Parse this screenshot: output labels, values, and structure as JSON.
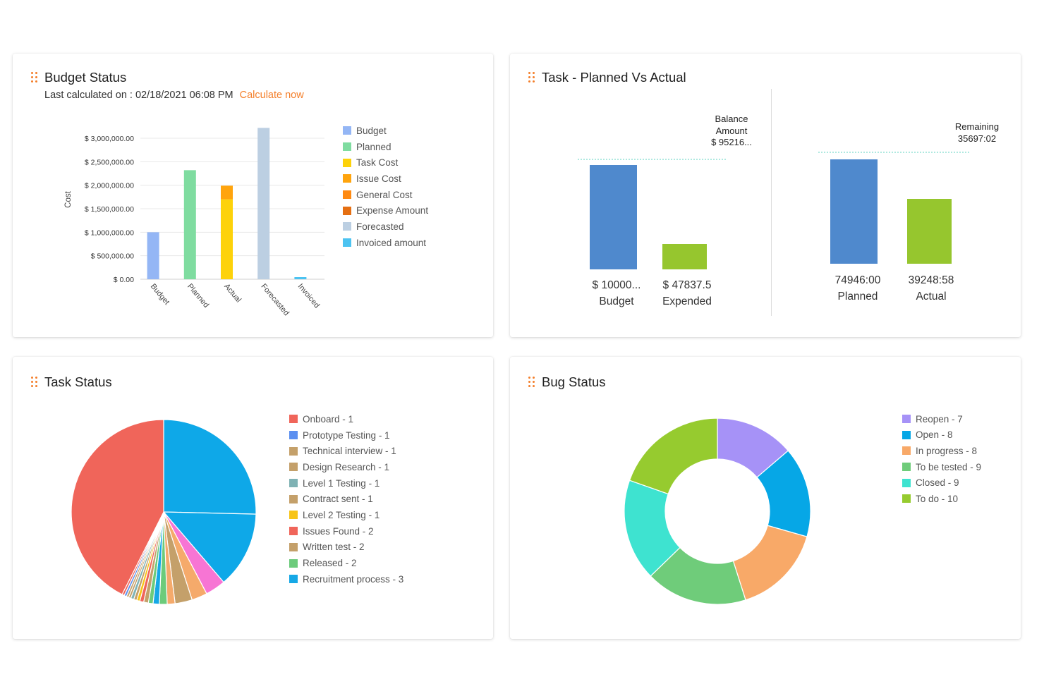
{
  "colors": {
    "accent": "#f47f2a",
    "budget_blue": "#4f89cd",
    "expended_green": "#96c62e"
  },
  "budget_status": {
    "title": "Budget Status",
    "last_calculated_label": "Last calculated on : 02/18/2021 06:08 PM",
    "calculate_now_label": "Calculate now",
    "legend": [
      {
        "label": "Budget",
        "color": "#94b6f5"
      },
      {
        "label": "Planned",
        "color": "#7fdca0"
      },
      {
        "label": "Task Cost",
        "color": "#fdd20a"
      },
      {
        "label": "Issue Cost",
        "color": "#ffa40d"
      },
      {
        "label": "General Cost",
        "color": "#ff8a12"
      },
      {
        "label": "Expense Amount",
        "color": "#e56f12"
      },
      {
        "label": "Forecasted",
        "color": "#bccfe2"
      },
      {
        "label": "Invoiced amount",
        "color": "#4cc3f1"
      }
    ]
  },
  "task_planned_actual": {
    "title": "Task - Planned Vs Actual",
    "left": {
      "annotation": [
        "Balance",
        "Amount",
        "$ 95216..."
      ],
      "bars": [
        {
          "value_label": "$ 10000...",
          "name": "Budget",
          "color": "#4f89cd",
          "level": 1.0
        },
        {
          "value_label": "$ 47837.5",
          "name": "Expended",
          "color": "#96c62e",
          "level": 0.24
        }
      ]
    },
    "right": {
      "annotation": [
        "Remaining",
        "35697:02"
      ],
      "bars": [
        {
          "value_label": "74946:00",
          "name": "Planned",
          "color": "#4f89cd",
          "level": 1.0
        },
        {
          "value_label": "39248:58",
          "name": "Actual",
          "color": "#96c62e",
          "level": 0.62
        }
      ]
    }
  },
  "task_status": {
    "title": "Task Status",
    "legend": [
      {
        "label": "Onboard - 1",
        "color": "#f0655a"
      },
      {
        "label": "Prototype Testing - 1",
        "color": "#5b8ff0"
      },
      {
        "label": "Technical interview - 1",
        "color": "#c4a06a"
      },
      {
        "label": "Design Research - 1",
        "color": "#c4a06a"
      },
      {
        "label": "Level 1 Testing - 1",
        "color": "#7fb2b4"
      },
      {
        "label": "Contract sent - 1",
        "color": "#c4a06a"
      },
      {
        "label": "Level 2 Testing - 1",
        "color": "#f7c417"
      },
      {
        "label": "Issues Found - 2",
        "color": "#f0655a"
      },
      {
        "label": "Written test - 2",
        "color": "#c4a06a"
      },
      {
        "label": "Released - 2",
        "color": "#6ccb7b"
      },
      {
        "label": "Recruitment process - 3",
        "color": "#16a8e6"
      }
    ]
  },
  "bug_status": {
    "title": "Bug Status",
    "legend": [
      {
        "label": "Reopen - 7",
        "color": "#a692f7"
      },
      {
        "label": "Open - 8",
        "color": "#06a7e6"
      },
      {
        "label": "In progress - 8",
        "color": "#f8a968"
      },
      {
        "label": "To be tested - 9",
        "color": "#6fcc7a"
      },
      {
        "label": "Closed - 9",
        "color": "#3ee3d0"
      },
      {
        "label": "To do - 10",
        "color": "#96cb2f"
      }
    ]
  },
  "chart_data": [
    {
      "chart": "budget-status",
      "type": "bar",
      "ylabel": "Cost",
      "ylim": [
        0,
        3000000
      ],
      "yticks": [
        "$ 0.00",
        "$ 500,000.00",
        "$ 1,000,000.00",
        "$ 1,500,000.00",
        "$ 2,000,000.00",
        "$ 2,500,000.00",
        "$ 3,000,000.00"
      ],
      "tick_values": [
        0,
        500000,
        1000000,
        1500000,
        2000000,
        2500000,
        3000000
      ],
      "categories": [
        "Budget",
        "Planned",
        "Actual",
        "Forecasted",
        "Invoiced"
      ],
      "bars": [
        {
          "category": "Budget",
          "segments": [
            {
              "series": "Budget",
              "value": 1000000,
              "color": "#94b6f5"
            }
          ]
        },
        {
          "category": "Planned",
          "segments": [
            {
              "series": "Planned",
              "value": 2320000,
              "color": "#7fdca0"
            }
          ]
        },
        {
          "category": "Actual",
          "segments": [
            {
              "series": "Task Cost",
              "value": 1700000,
              "color": "#fdd20a"
            },
            {
              "series": "Issue Cost",
              "value": 290000,
              "color": "#ffa40d"
            }
          ]
        },
        {
          "category": "Forecasted",
          "segments": [
            {
              "series": "Forecasted",
              "value": 3220000,
              "color": "#bccfe2"
            }
          ]
        },
        {
          "category": "Invoiced",
          "segments": [
            {
              "series": "Invoiced amount",
              "value": 45000,
              "color": "#4cc3f1"
            }
          ]
        }
      ]
    },
    {
      "chart": "task-status",
      "type": "pie",
      "slices": [
        {
          "value": 15.6,
          "color": "#f0655a"
        },
        {
          "value": 9.3,
          "color": "#0ea8e8"
        },
        {
          "value": 4.9,
          "color": "#0ea8e8"
        },
        {
          "value": 1.3,
          "color": "#f775d4"
        },
        {
          "value": 1.0,
          "color": "#f5aa6b"
        },
        {
          "value": 1.1,
          "color": "#c4a06a"
        },
        {
          "value": 0.5,
          "color": "#f5aa6b"
        },
        {
          "value": 0.5,
          "color": "#6ccb7b"
        },
        {
          "value": 0.4,
          "color": "#16a8e6"
        },
        {
          "value": 0.3,
          "color": "#6ccb7b"
        },
        {
          "value": 0.3,
          "color": "#c4a06a"
        },
        {
          "value": 0.25,
          "color": "#f0655a"
        },
        {
          "value": 0.2,
          "color": "#f7c417"
        },
        {
          "value": 0.2,
          "color": "#c4a06a"
        },
        {
          "value": 0.2,
          "color": "#7fb2b4"
        },
        {
          "value": 0.15,
          "color": "#c4a06a"
        },
        {
          "value": 0.15,
          "color": "#c4a06a"
        },
        {
          "value": 0.15,
          "color": "#5b8ff0"
        },
        {
          "value": 0.15,
          "color": "#f0655a"
        }
      ]
    },
    {
      "chart": "bug-status",
      "type": "pie",
      "donut": true,
      "slices": [
        {
          "label": "Reopen",
          "value": 7,
          "color": "#a692f7"
        },
        {
          "label": "Open",
          "value": 8,
          "color": "#06a7e6"
        },
        {
          "label": "In progress",
          "value": 8,
          "color": "#f8a968"
        },
        {
          "label": "To be tested",
          "value": 9,
          "color": "#6fcc7a"
        },
        {
          "label": "Closed",
          "value": 9,
          "color": "#3ee3d0"
        },
        {
          "label": "To do",
          "value": 10,
          "color": "#96cb2f"
        }
      ]
    }
  ]
}
